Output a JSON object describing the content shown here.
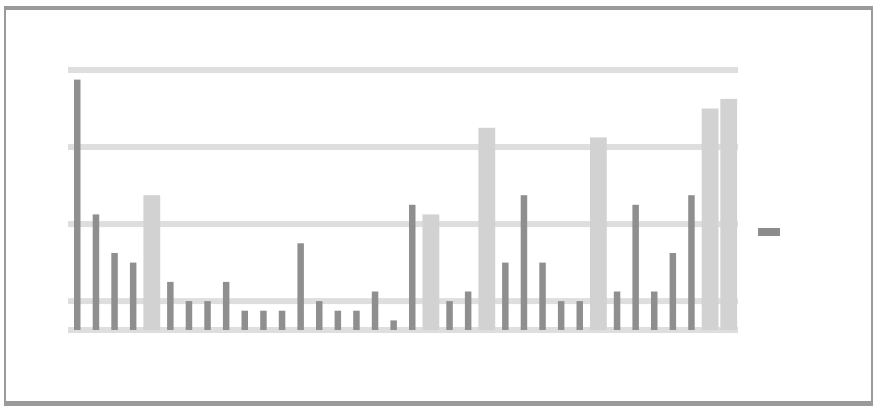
{
  "chart_data": {
    "type": "bar",
    "title": "",
    "xlabel": "",
    "ylabel": "",
    "ylim": [
      0,
      27
    ],
    "grid": true,
    "legend": "right",
    "x_tick_labels": [],
    "series": [
      {
        "name": "",
        "values": [
          26,
          12,
          8,
          7,
          14,
          5,
          3,
          3,
          5,
          2,
          2,
          2,
          9,
          3,
          2,
          2,
          4,
          1,
          13,
          12,
          3,
          4,
          21,
          7,
          14,
          7,
          3,
          3,
          20,
          4,
          13,
          4,
          8,
          14,
          23,
          24
        ]
      }
    ]
  },
  "colors": {
    "bar_dark": "#8f8f8f",
    "bar_light": "#d2d2d2",
    "grid": "#dedede",
    "axis_text": "#777777"
  }
}
